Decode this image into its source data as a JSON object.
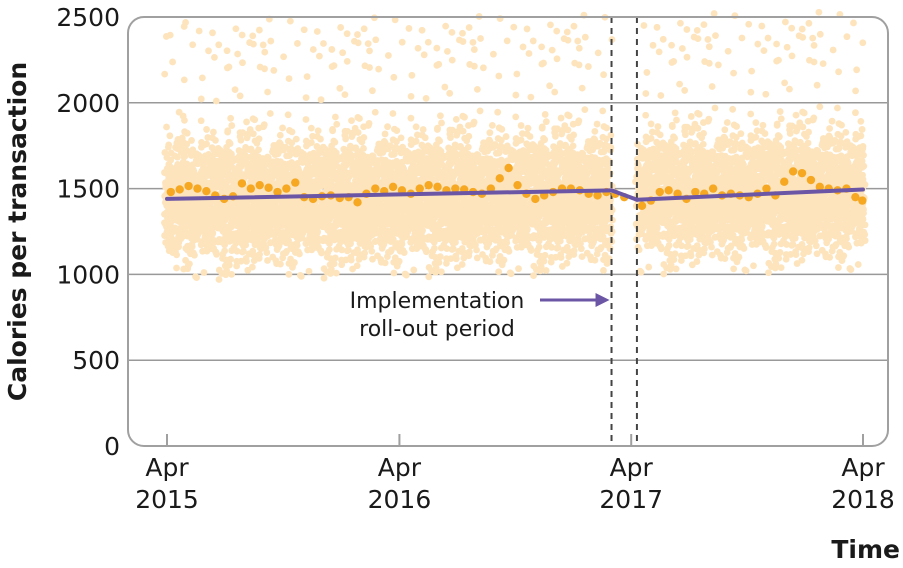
{
  "chart_data": {
    "type": "scatter",
    "ylabel": "Calories per transaction",
    "xlabel": "Time",
    "ylim": [
      0,
      2500
    ],
    "xlim": [
      "2015-04",
      "2018-04"
    ],
    "yticks": [
      0,
      500,
      1000,
      1500,
      2000,
      2500
    ],
    "xticks": [
      {
        "date": "2015-04",
        "month": "Apr",
        "year": "2015"
      },
      {
        "date": "2016-04",
        "month": "Apr",
        "year": "2016"
      },
      {
        "date": "2017-04",
        "month": "Apr",
        "year": "2017"
      },
      {
        "date": "2018-04",
        "month": "Apr",
        "year": "2018"
      }
    ],
    "grid": "horizontal",
    "rollout_period": [
      "2017-03-01",
      "2017-04-10"
    ],
    "annotation": {
      "line1": "Implementation",
      "line2": "roll-out period"
    },
    "colors": {
      "transactions": "#fde4bd",
      "weekly_mean": "#f6a823",
      "trend": "#6b56a5",
      "frame": "#a0a0a0",
      "gridline": "#999999"
    },
    "series": [
      {
        "kind": "trend",
        "segments": [
          {
            "x": [
              "2015-04-01",
              "2017-03-01"
            ],
            "y": [
              1440,
              1490
            ]
          },
          {
            "x": [
              "2017-03-01",
              "2017-04-10"
            ],
            "y": [
              1490,
              1435
            ]
          },
          {
            "x": [
              "2017-04-10",
              "2018-04-01"
            ],
            "y": [
              1435,
              1495
            ]
          }
        ]
      },
      {
        "kind": "weekly_mean",
        "x": [
          "2015-04-07",
          "2015-04-21",
          "2015-05-05",
          "2015-05-19",
          "2015-06-02",
          "2015-06-16",
          "2015-06-30",
          "2015-07-14",
          "2015-07-28",
          "2015-08-11",
          "2015-08-25",
          "2015-09-08",
          "2015-09-22",
          "2015-10-06",
          "2015-10-20",
          "2015-11-03",
          "2015-11-17",
          "2015-12-01",
          "2015-12-15",
          "2015-12-29",
          "2016-01-12",
          "2016-01-26",
          "2016-02-09",
          "2016-02-23",
          "2016-03-08",
          "2016-03-22",
          "2016-04-05",
          "2016-04-19",
          "2016-05-03",
          "2016-05-17",
          "2016-05-31",
          "2016-06-14",
          "2016-06-28",
          "2016-07-12",
          "2016-07-26",
          "2016-08-09",
          "2016-08-23",
          "2016-09-06",
          "2016-09-20",
          "2016-10-04",
          "2016-10-18",
          "2016-11-01",
          "2016-11-15",
          "2016-11-29",
          "2016-12-13",
          "2016-12-27",
          "2017-01-10",
          "2017-01-24",
          "2017-02-07",
          "2017-02-21",
          "2017-03-07",
          "2017-03-21",
          "2017-04-18",
          "2017-05-02",
          "2017-05-16",
          "2017-05-30",
          "2017-06-13",
          "2017-06-27",
          "2017-07-11",
          "2017-07-25",
          "2017-08-08",
          "2017-08-22",
          "2017-09-05",
          "2017-09-19",
          "2017-10-03",
          "2017-10-17",
          "2017-10-31",
          "2017-11-14",
          "2017-11-28",
          "2017-12-12",
          "2017-12-26",
          "2018-01-09",
          "2018-01-23",
          "2018-02-06",
          "2018-02-20",
          "2018-03-06",
          "2018-03-20",
          "2018-03-31"
        ],
        "y": [
          1480,
          1495,
          1515,
          1500,
          1485,
          1460,
          1440,
          1455,
          1530,
          1500,
          1520,
          1505,
          1480,
          1500,
          1535,
          1450,
          1440,
          1455,
          1460,
          1445,
          1450,
          1420,
          1470,
          1500,
          1485,
          1510,
          1490,
          1470,
          1500,
          1520,
          1510,
          1490,
          1500,
          1495,
          1480,
          1470,
          1500,
          1560,
          1620,
          1520,
          1470,
          1440,
          1460,
          1480,
          1500,
          1500,
          1490,
          1470,
          1460,
          1480,
          1470,
          1450,
          1400,
          1430,
          1480,
          1490,
          1470,
          1440,
          1480,
          1470,
          1500,
          1460,
          1470,
          1460,
          1450,
          1470,
          1500,
          1460,
          1540,
          1600,
          1590,
          1550,
          1510,
          1500,
          1490,
          1500,
          1450,
          1430
        ]
      }
    ]
  }
}
